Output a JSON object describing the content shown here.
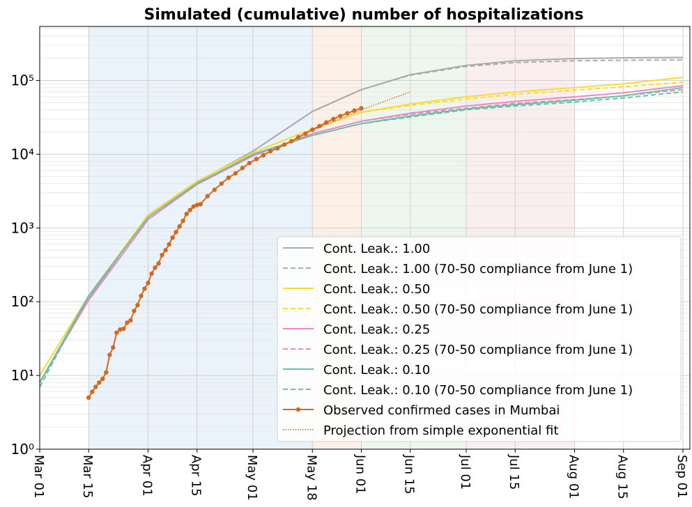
{
  "chart_data": {
    "type": "line",
    "title": "Simulated (cumulative) number of hospitalizations",
    "xlim": [
      "Mar 01",
      "Sep 03"
    ],
    "xticks": [
      "Mar 01",
      "Mar 15",
      "Apr 01",
      "Apr 15",
      "May 01",
      "May 18",
      "Jun 01",
      "Jun 15",
      "Jul 01",
      "Jul 15",
      "Aug 01",
      "Aug 15",
      "Sep 01"
    ],
    "ylim": [
      1,
      540000
    ],
    "yscale": "log",
    "yticks": [
      {
        "value": 1,
        "label": "10⁰"
      },
      {
        "value": 10,
        "label": "10¹"
      },
      {
        "value": 100,
        "label": "10²"
      },
      {
        "value": 1000,
        "label": "10³"
      },
      {
        "value": 10000,
        "label": "10⁴"
      },
      {
        "value": 100000,
        "label": "10⁵"
      }
    ],
    "grid": true,
    "legend": "lower right",
    "spans": [
      {
        "start": "Mar 15",
        "end": "May 18",
        "color": "#eaf3f9"
      },
      {
        "start": "May 18",
        "end": "Jun 01",
        "color": "#fdf1e7"
      },
      {
        "start": "Jun 01",
        "end": "Jul 01",
        "color": "#eef7ee"
      },
      {
        "start": "Jul 01",
        "end": "Aug 01",
        "color": "#fbeeee"
      }
    ],
    "series": [
      {
        "name": "Cont. Leak.: 1.00",
        "color": "#aaaaaa",
        "linestyle": "solid",
        "x": [
          "Mar 01",
          "Mar 15",
          "Apr 01",
          "Apr 15",
          "May 01",
          "May 18",
          "Jun 01",
          "Jun 15",
          "Jul 01",
          "Jul 15",
          "Aug 01",
          "Aug 15",
          "Sep 01"
        ],
        "values": [
          8,
          110,
          1500,
          4200,
          11000,
          38000,
          75000,
          120000,
          160000,
          185000,
          198000,
          203000,
          205000
        ]
      },
      {
        "name": "Cont. Leak.: 1.00 (70-50 compliance from June 1)",
        "color": "#aaaaaa",
        "linestyle": "dashed",
        "x": [
          "Mar 01",
          "Mar 15",
          "Apr 01",
          "Apr 15",
          "May 01",
          "May 18",
          "Jun 01",
          "Jun 15",
          "Jul 01",
          "Jul 15",
          "Aug 01",
          "Aug 15",
          "Sep 01"
        ],
        "values": [
          8,
          110,
          1500,
          4200,
          11000,
          38000,
          75000,
          118000,
          155000,
          175000,
          185000,
          188000,
          190000
        ]
      },
      {
        "name": "Cont. Leak.: 0.50",
        "color": "#ffd92f",
        "linestyle": "solid",
        "x": [
          "Mar 01",
          "Mar 15",
          "Apr 01",
          "Apr 15",
          "May 01",
          "May 18",
          "Jun 01",
          "Jun 15",
          "Jul 01",
          "Jul 15",
          "Aug 01",
          "Aug 15",
          "Sep 01"
        ],
        "values": [
          10,
          120,
          1500,
          4300,
          10500,
          22000,
          37000,
          48000,
          60000,
          70000,
          80000,
          90000,
          110000
        ]
      },
      {
        "name": "Cont. Leak.: 0.50 (70-50 compliance from June 1)",
        "color": "#ffd92f",
        "linestyle": "dashed",
        "x": [
          "Mar 01",
          "Mar 15",
          "Apr 01",
          "Apr 15",
          "May 01",
          "May 18",
          "Jun 01",
          "Jun 15",
          "Jul 01",
          "Jul 15",
          "Aug 01",
          "Aug 15",
          "Sep 01"
        ],
        "values": [
          10,
          120,
          1500,
          4300,
          10500,
          22000,
          37000,
          46000,
          56000,
          65000,
          74000,
          82000,
          95000
        ]
      },
      {
        "name": "Cont. Leak.: 0.25",
        "color": "#e78ac3",
        "linestyle": "solid",
        "x": [
          "Mar 01",
          "Mar 15",
          "Apr 01",
          "Apr 15",
          "May 01",
          "May 18",
          "Jun 01",
          "Jun 15",
          "Jul 01",
          "Jul 15",
          "Aug 01",
          "Aug 15",
          "Sep 01"
        ],
        "values": [
          8,
          105,
          1300,
          3900,
          9500,
          19000,
          28000,
          36000,
          45000,
          52000,
          60000,
          68000,
          85000
        ]
      },
      {
        "name": "Cont. Leak.: 0.25 (70-50 compliance from June 1)",
        "color": "#e78ac3",
        "linestyle": "dashed",
        "x": [
          "Mar 01",
          "Mar 15",
          "Apr 01",
          "Apr 15",
          "May 01",
          "May 18",
          "Jun 01",
          "Jun 15",
          "Jul 01",
          "Jul 15",
          "Aug 01",
          "Aug 15",
          "Sep 01"
        ],
        "values": [
          8,
          105,
          1300,
          3900,
          9500,
          19000,
          28000,
          35000,
          42000,
          49000,
          55000,
          62000,
          75000
        ]
      },
      {
        "name": "Cont. Leak.: 0.10",
        "color": "#66c2a5",
        "linestyle": "solid",
        "x": [
          "Mar 01",
          "Mar 15",
          "Apr 01",
          "Apr 15",
          "May 01",
          "May 18",
          "Jun 01",
          "Jun 15",
          "Jul 01",
          "Jul 15",
          "Aug 01",
          "Aug 15",
          "Sep 01"
        ],
        "values": [
          8,
          120,
          1400,
          4000,
          10000,
          18000,
          26000,
          33000,
          41000,
          47000,
          54000,
          62000,
          80000
        ]
      },
      {
        "name": "Cont. Leak.: 0.10 (70-50 compliance from June 1)",
        "color": "#66c2a5",
        "linestyle": "dashed",
        "x": [
          "Mar 01",
          "Mar 15",
          "Apr 01",
          "Apr 15",
          "May 01",
          "May 18",
          "Jun 01",
          "Jun 15",
          "Jul 01",
          "Jul 15",
          "Aug 01",
          "Aug 15",
          "Sep 01"
        ],
        "values": [
          7,
          120,
          1400,
          4000,
          10000,
          18000,
          26000,
          32000,
          40000,
          45000,
          51000,
          58000,
          70000
        ]
      },
      {
        "name": "Observed confirmed cases in Mumbai",
        "color": "#d2691e",
        "linestyle": "solid",
        "marker": "o",
        "x": [
          "Mar 15",
          "Mar 16",
          "Mar 17",
          "Mar 18",
          "Mar 19",
          "Mar 20",
          "Mar 21",
          "Mar 22",
          "Mar 23",
          "Mar 24",
          "Mar 25",
          "Mar 26",
          "Mar 27",
          "Mar 28",
          "Mar 29",
          "Mar 30",
          "Mar 31",
          "Apr 01",
          "Apr 02",
          "Apr 03",
          "Apr 04",
          "Apr 05",
          "Apr 06",
          "Apr 07",
          "Apr 08",
          "Apr 09",
          "Apr 10",
          "Apr 11",
          "Apr 12",
          "Apr 13",
          "Apr 14",
          "Apr 15",
          "Apr 16",
          "Apr 18",
          "Apr 20",
          "Apr 22",
          "Apr 24",
          "Apr 26",
          "Apr 28",
          "Apr 30",
          "May 02",
          "May 04",
          "May 06",
          "May 08",
          "May 10",
          "May 12",
          "May 14",
          "May 16",
          "May 18",
          "May 20",
          "May 22",
          "May 24",
          "May 26",
          "May 28",
          "May 30",
          "Jun 01"
        ],
        "values": [
          5,
          6,
          7,
          8,
          9,
          11,
          19,
          24,
          38,
          42,
          43,
          52,
          56,
          75,
          90,
          120,
          150,
          180,
          240,
          290,
          330,
          430,
          500,
          600,
          740,
          880,
          1050,
          1250,
          1550,
          1750,
          1950,
          2050,
          2100,
          2700,
          3300,
          4000,
          4800,
          5500,
          6500,
          7600,
          8600,
          9700,
          11000,
          12000,
          13500,
          15000,
          17000,
          19000,
          21500,
          24000,
          27000,
          30000,
          33000,
          36000,
          39000,
          42000
        ]
      },
      {
        "name": "Projection from simple exponential fit",
        "color": "#d2691e",
        "linestyle": "dotted",
        "x": [
          "May 18",
          "Jun 01",
          "Jun 15"
        ],
        "values": [
          21000,
          40000,
          70000
        ]
      }
    ]
  }
}
